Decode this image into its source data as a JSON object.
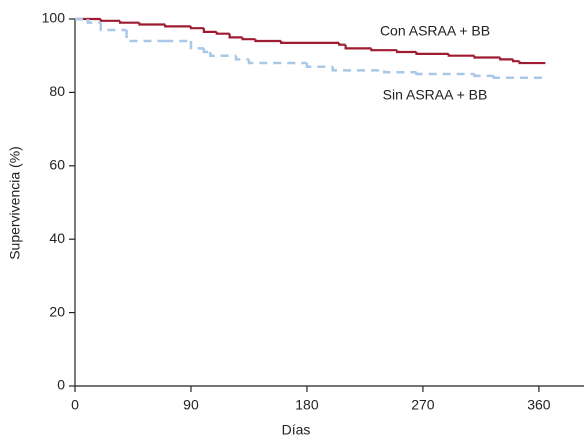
{
  "chart_data": {
    "type": "line",
    "step": true,
    "xlabel": "Días",
    "ylabel": "Supervivencia (%)",
    "xlim": [
      0,
      395
    ],
    "xticks": [
      0,
      90,
      180,
      270,
      360
    ],
    "ylim": [
      0,
      100
    ],
    "yticks": [
      0,
      20,
      40,
      60,
      80,
      100
    ],
    "series": [
      {
        "name": "Con ASRAA + BB",
        "color": "#9e1b32",
        "dashed": false,
        "x": [
          0,
          20,
          35,
          50,
          70,
          90,
          100,
          110,
          120,
          130,
          140,
          160,
          205,
          210,
          230,
          250,
          265,
          290,
          310,
          330,
          340,
          345,
          365
        ],
        "values": [
          100,
          99.5,
          99,
          98.5,
          98,
          97.5,
          96.5,
          96,
          95,
          94.5,
          94,
          93.5,
          93,
          92,
          91.5,
          91,
          90.5,
          90,
          89.5,
          89,
          88.5,
          88,
          88
        ]
      },
      {
        "name": "Sin ASRAA + BB",
        "color": "#a9c8e8",
        "dashed": true,
        "x": [
          0,
          10,
          20,
          40,
          70,
          90,
          100,
          105,
          125,
          135,
          180,
          200,
          240,
          265,
          310,
          325,
          365
        ],
        "values": [
          100,
          99,
          97,
          94,
          94,
          92,
          91,
          90,
          89,
          88,
          87,
          86,
          85.5,
          85,
          84.5,
          84,
          84
        ]
      }
    ]
  }
}
